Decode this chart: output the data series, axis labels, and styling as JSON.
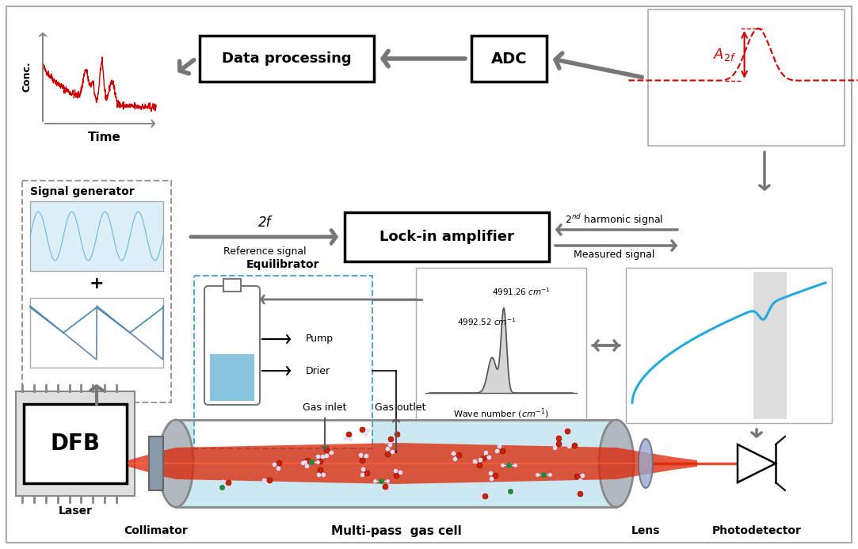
{
  "bg_color": "#ffffff",
  "border_color": "#999999",
  "arrow_color": "#777777",
  "red_color": "#cc0000",
  "blue_color": "#22aadd",
  "dashed_box_color": "#55aacc",
  "labels": {
    "data_processing": "Data processing",
    "adc": "ADC",
    "lock_in": "Lock-in amplifier",
    "signal_gen": "Signal generator",
    "dfb": "DFB",
    "laser": "Laser",
    "collimator": "Collimator",
    "multipass": "Multi-pass  gas cell",
    "lens": "Lens",
    "photodetector": "Photodetector",
    "equilibrator": "Equilibrator",
    "pump": "Pump",
    "drier": "Drier",
    "gas_inlet": "Gas inlet",
    "gas_outlet": "Gas outlet",
    "conc": "Conc.",
    "time": "Time",
    "ref_signal": "Reference signal",
    "two_f": "2f",
    "second_harmonic": "$2^{nd}$ harmonic signal",
    "measured_signal": "Measured signal",
    "a2f": "$A_{2f}$",
    "wavenumber_label": "Wave number ($cm^{-1}$)",
    "wn1": "4991.26 $cm^{-1}$",
    "wn2": "4992.52 $cm^{-1}$"
  }
}
